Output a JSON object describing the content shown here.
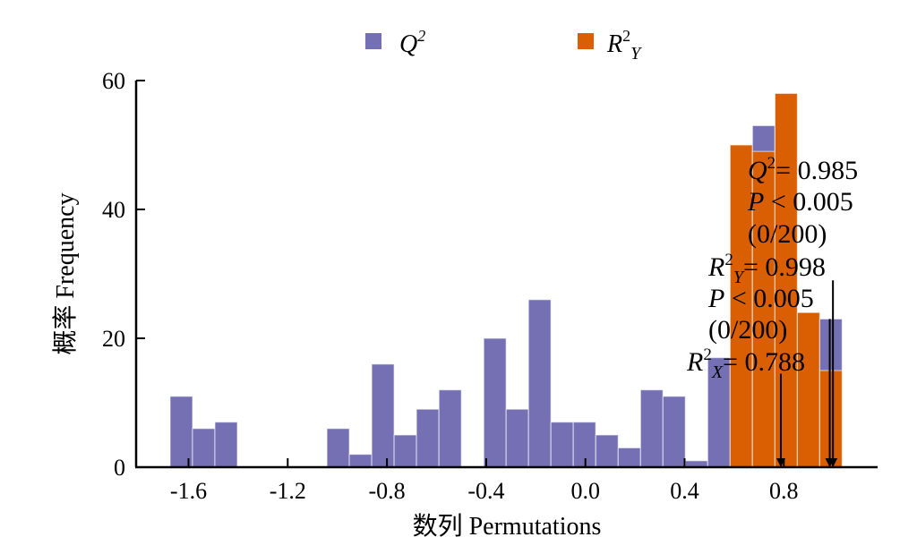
{
  "chart_data": {
    "type": "bar",
    "subtype": "stacked-histogram",
    "title": "",
    "xlabel": "数列 Permutations",
    "ylabel": "概率 Frequency",
    "xlim": [
      -1.78,
      1.2
    ],
    "ylim": [
      0,
      60
    ],
    "xticks": [
      -1.6,
      -1.2,
      -0.8,
      -0.4,
      0.0,
      0.4,
      0.8
    ],
    "xtick_labels": [
      "-1.6",
      "-1.2",
      "-0.8",
      "-0.4",
      "0.0",
      "0.4",
      "0.8"
    ],
    "yticks": [
      0,
      20,
      40,
      60
    ],
    "ytick_labels": [
      "0",
      "20",
      "40",
      "60"
    ],
    "grid": false,
    "legend_position": "top-center",
    "bin_start": -1.674,
    "bin_width": 0.0903,
    "series": [
      {
        "name": "Q2",
        "legend_label": "Q",
        "legend_sup": "2",
        "color": "#7570b3",
        "values": [
          11,
          6,
          7,
          0,
          0,
          0,
          0,
          6,
          2,
          16,
          5,
          9,
          12,
          0,
          20,
          9,
          26,
          7,
          7,
          5,
          3,
          12,
          11,
          1,
          17,
          0,
          53,
          0,
          0,
          23
        ]
      },
      {
        "name": "R2Y",
        "legend_label": "R",
        "legend_sup": "2",
        "legend_sub": "Y",
        "color": "#d95f02",
        "values": [
          0,
          0,
          0,
          0,
          0,
          0,
          0,
          0,
          0,
          0,
          0,
          0,
          0,
          0,
          0,
          0,
          0,
          0,
          0,
          0,
          0,
          0,
          0,
          0,
          0,
          50,
          49,
          58,
          24,
          15
        ]
      }
    ],
    "annotations": {
      "q2": {
        "sym": "Q",
        "sup": "2",
        "eq": "= 0.985",
        "p": "< 0.005",
        "p_sym": "P",
        "count": "(0/200)",
        "value": 0.985,
        "arrow_from_freq": 23
      },
      "r2y": {
        "sym": "R",
        "sup": "2",
        "sub": "Y",
        "eq": "= 0.998",
        "p": "< 0.005",
        "p_sym": "P",
        "count": "(0/200)",
        "value": 0.998,
        "arrow_from_freq": 29
      },
      "r2x": {
        "sym": "R",
        "sup": "2",
        "sub": "X",
        "eq": "= 0.788",
        "value": 0.788,
        "arrow_from_freq": 14.5
      }
    }
  }
}
